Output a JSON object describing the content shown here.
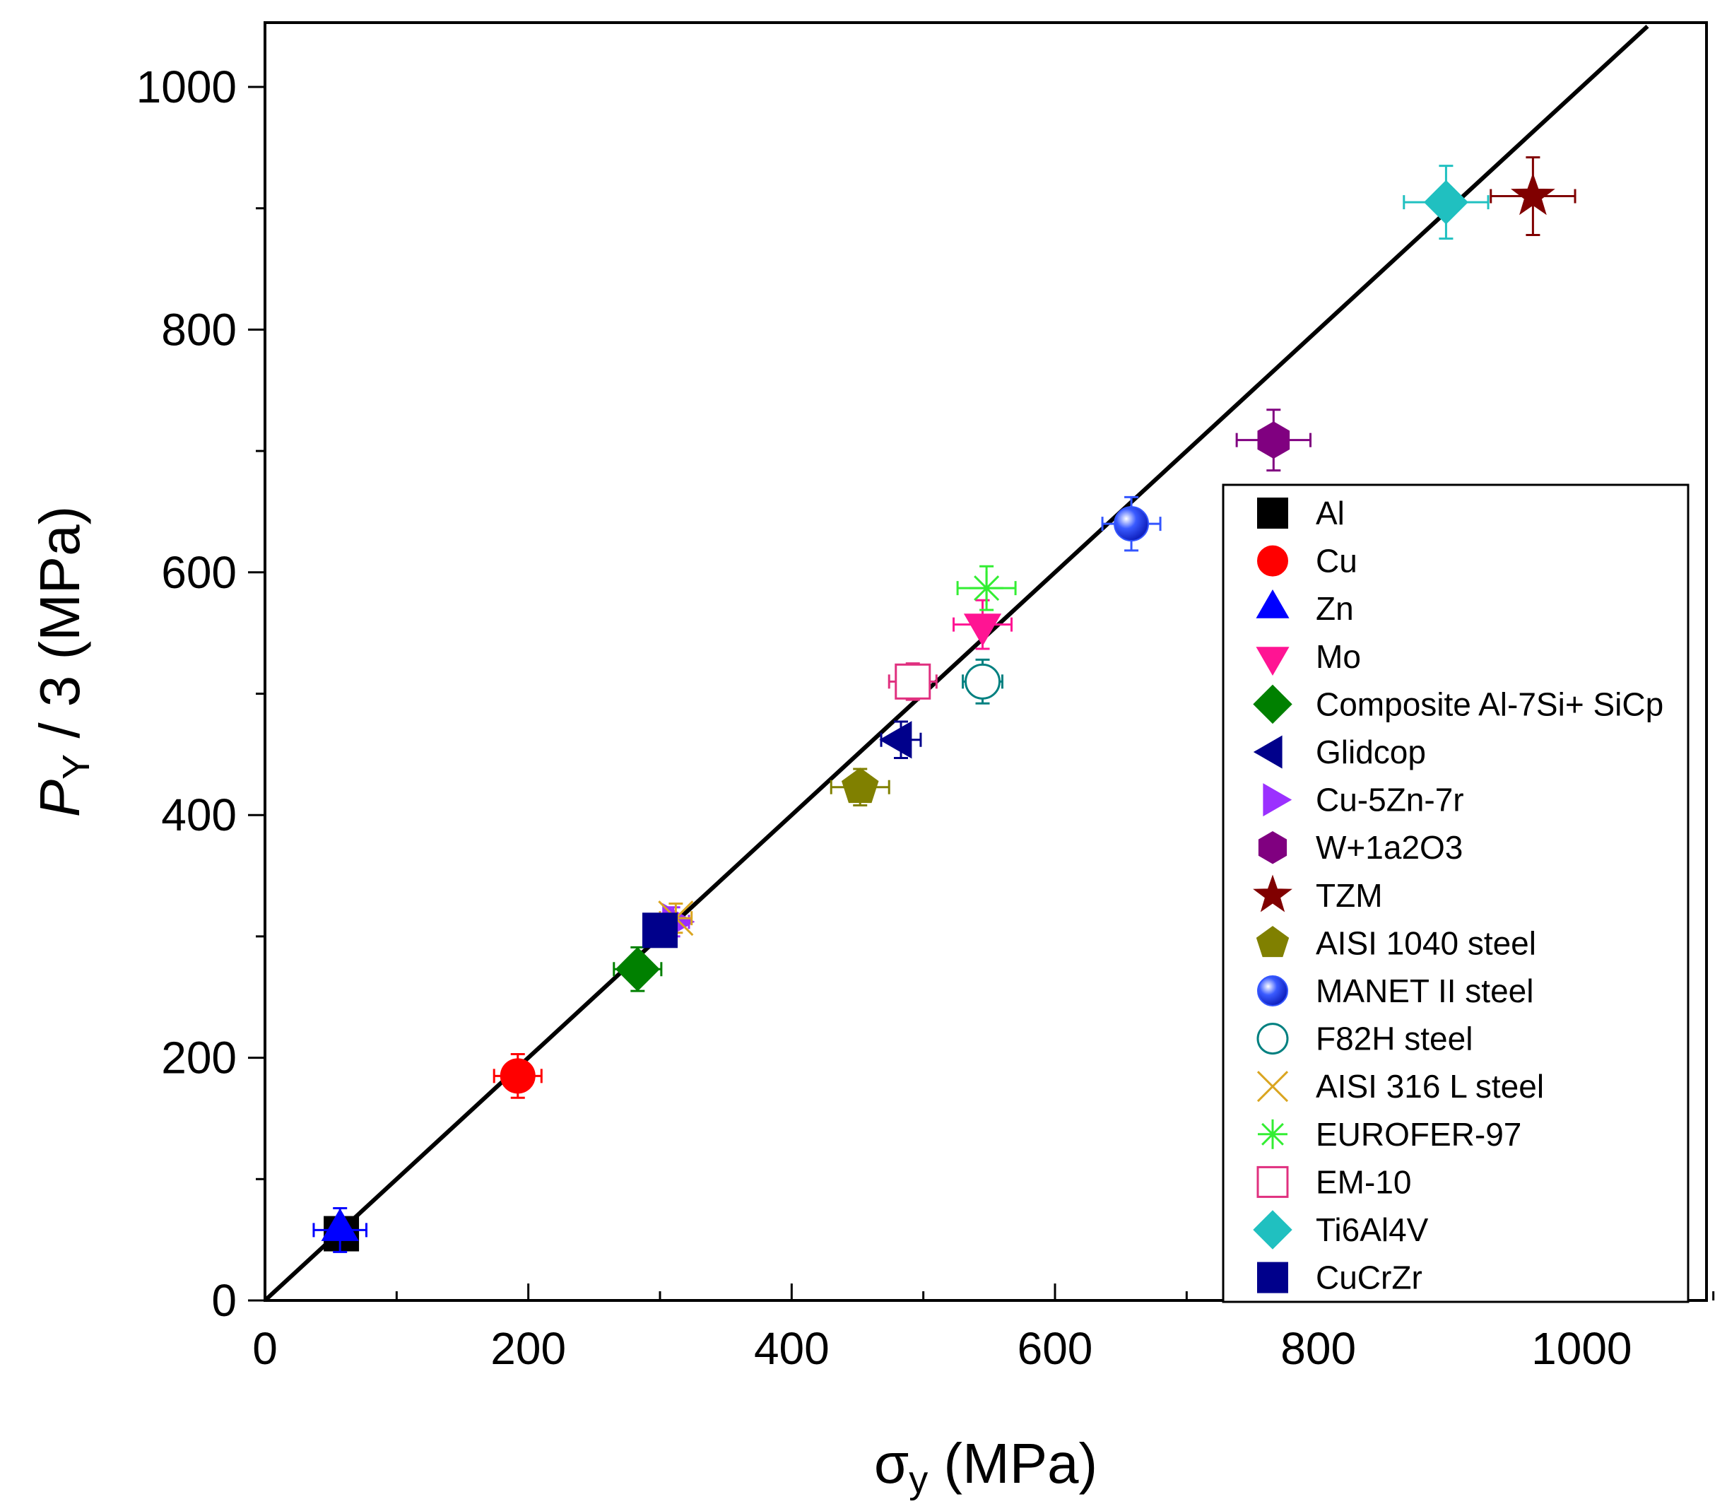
{
  "chart_data": {
    "type": "scatter",
    "title": "",
    "xlabel": "σy (MPa)",
    "xlabel_main": "σ",
    "xlabel_sub": "y",
    "xlabel_unit": " (MPa)",
    "ylabel_main": "P",
    "ylabel_sub": "Y",
    "ylabel_rest": " / 3 (MPa)",
    "xlim": [
      0,
      1100
    ],
    "ylim": [
      0,
      1050
    ],
    "x_ticks": [
      0,
      200,
      400,
      600,
      800,
      1000
    ],
    "y_ticks": [
      0,
      200,
      400,
      600,
      800,
      1000
    ],
    "x_tick_labels": [
      "0",
      "200",
      "400",
      "600",
      "800",
      "1000"
    ],
    "y_tick_labels": [
      "0",
      "200",
      "400",
      "600",
      "800",
      "1000"
    ],
    "grid": false,
    "legend_position": "bottom-right",
    "fit_line": {
      "x": [
        0,
        1050
      ],
      "y": [
        0,
        1050
      ],
      "color": "#000000"
    },
    "series": [
      {
        "name": "Al",
        "color": "#000000",
        "marker": "square",
        "filled": true,
        "x": 58,
        "y": 55,
        "xerr": 8,
        "yerr": 8
      },
      {
        "name": "Cu",
        "color": "#ff0000",
        "marker": "circle",
        "filled": true,
        "x": 192,
        "y": 185,
        "xerr": 18,
        "yerr": 18
      },
      {
        "name": "Zn",
        "color": "#0000ff",
        "marker": "triangle-up",
        "filled": true,
        "x": 57,
        "y": 58,
        "xerr": 20,
        "yerr": 18
      },
      {
        "name": "Mo",
        "color": "#ff1493",
        "marker": "triangle-down",
        "filled": true,
        "x": 545,
        "y": 557,
        "xerr": 22,
        "yerr": 20
      },
      {
        "name": "Composite Al-7Si+ SiCp",
        "color": "#008000",
        "marker": "diamond",
        "filled": true,
        "x": 283,
        "y": 273,
        "xerr": 18,
        "yerr": 18
      },
      {
        "name": "Glidcop",
        "color": "#00008b",
        "marker": "triangle-left",
        "filled": true,
        "x": 483,
        "y": 462,
        "xerr": 15,
        "yerr": 15
      },
      {
        "name": "Cu-5Zn-7r",
        "color": "#9b30ff",
        "marker": "triangle-right",
        "filled": true,
        "x": 310,
        "y": 312,
        "xerr": 12,
        "yerr": 12
      },
      {
        "name": "W+1a2O3",
        "color": "#800080",
        "marker": "hexagon",
        "filled": true,
        "x": 766,
        "y": 709,
        "xerr": 28,
        "yerr": 25
      },
      {
        "name": "TZM",
        "color": "#800000",
        "marker": "star",
        "filled": true,
        "x": 963,
        "y": 910,
        "xerr": 32,
        "yerr": 32
      },
      {
        "name": "AISI 1040 steel",
        "color": "#808000",
        "marker": "pentagon",
        "filled": true,
        "x": 452,
        "y": 423,
        "xerr": 22,
        "yerr": 15
      },
      {
        "name": "MANET II steel",
        "color": "#3355ff",
        "marker": "sphere",
        "filled": true,
        "x": 658,
        "y": 640,
        "xerr": 22,
        "yerr": 22
      },
      {
        "name": "F82H steel",
        "color": "#008080",
        "marker": "circle",
        "filled": false,
        "x": 545,
        "y": 510,
        "xerr": 15,
        "yerr": 18
      },
      {
        "name": "AISI 316 L steel",
        "color": "#daa520",
        "marker": "x",
        "filled": false,
        "x": 312,
        "y": 315,
        "xerr": 12,
        "yerr": 12
      },
      {
        "name": "EUROFER-97",
        "color": "#33ee33",
        "marker": "asterisk",
        "filled": false,
        "x": 548,
        "y": 587,
        "xerr": 22,
        "yerr": 18
      },
      {
        "name": "EM-10",
        "color": "#e0307f",
        "marker": "square",
        "filled": false,
        "x": 492,
        "y": 510,
        "xerr": 18,
        "yerr": 15
      },
      {
        "name": "Ti6Al4V",
        "color": "#20c0c0",
        "marker": "diamond",
        "filled": true,
        "x": 897,
        "y": 905,
        "xerr": 32,
        "yerr": 30
      },
      {
        "name": "CuCrZr",
        "color": "#00008b",
        "marker": "square",
        "filled": true,
        "x": 300,
        "y": 305,
        "xerr": 10,
        "yerr": 10
      }
    ]
  }
}
